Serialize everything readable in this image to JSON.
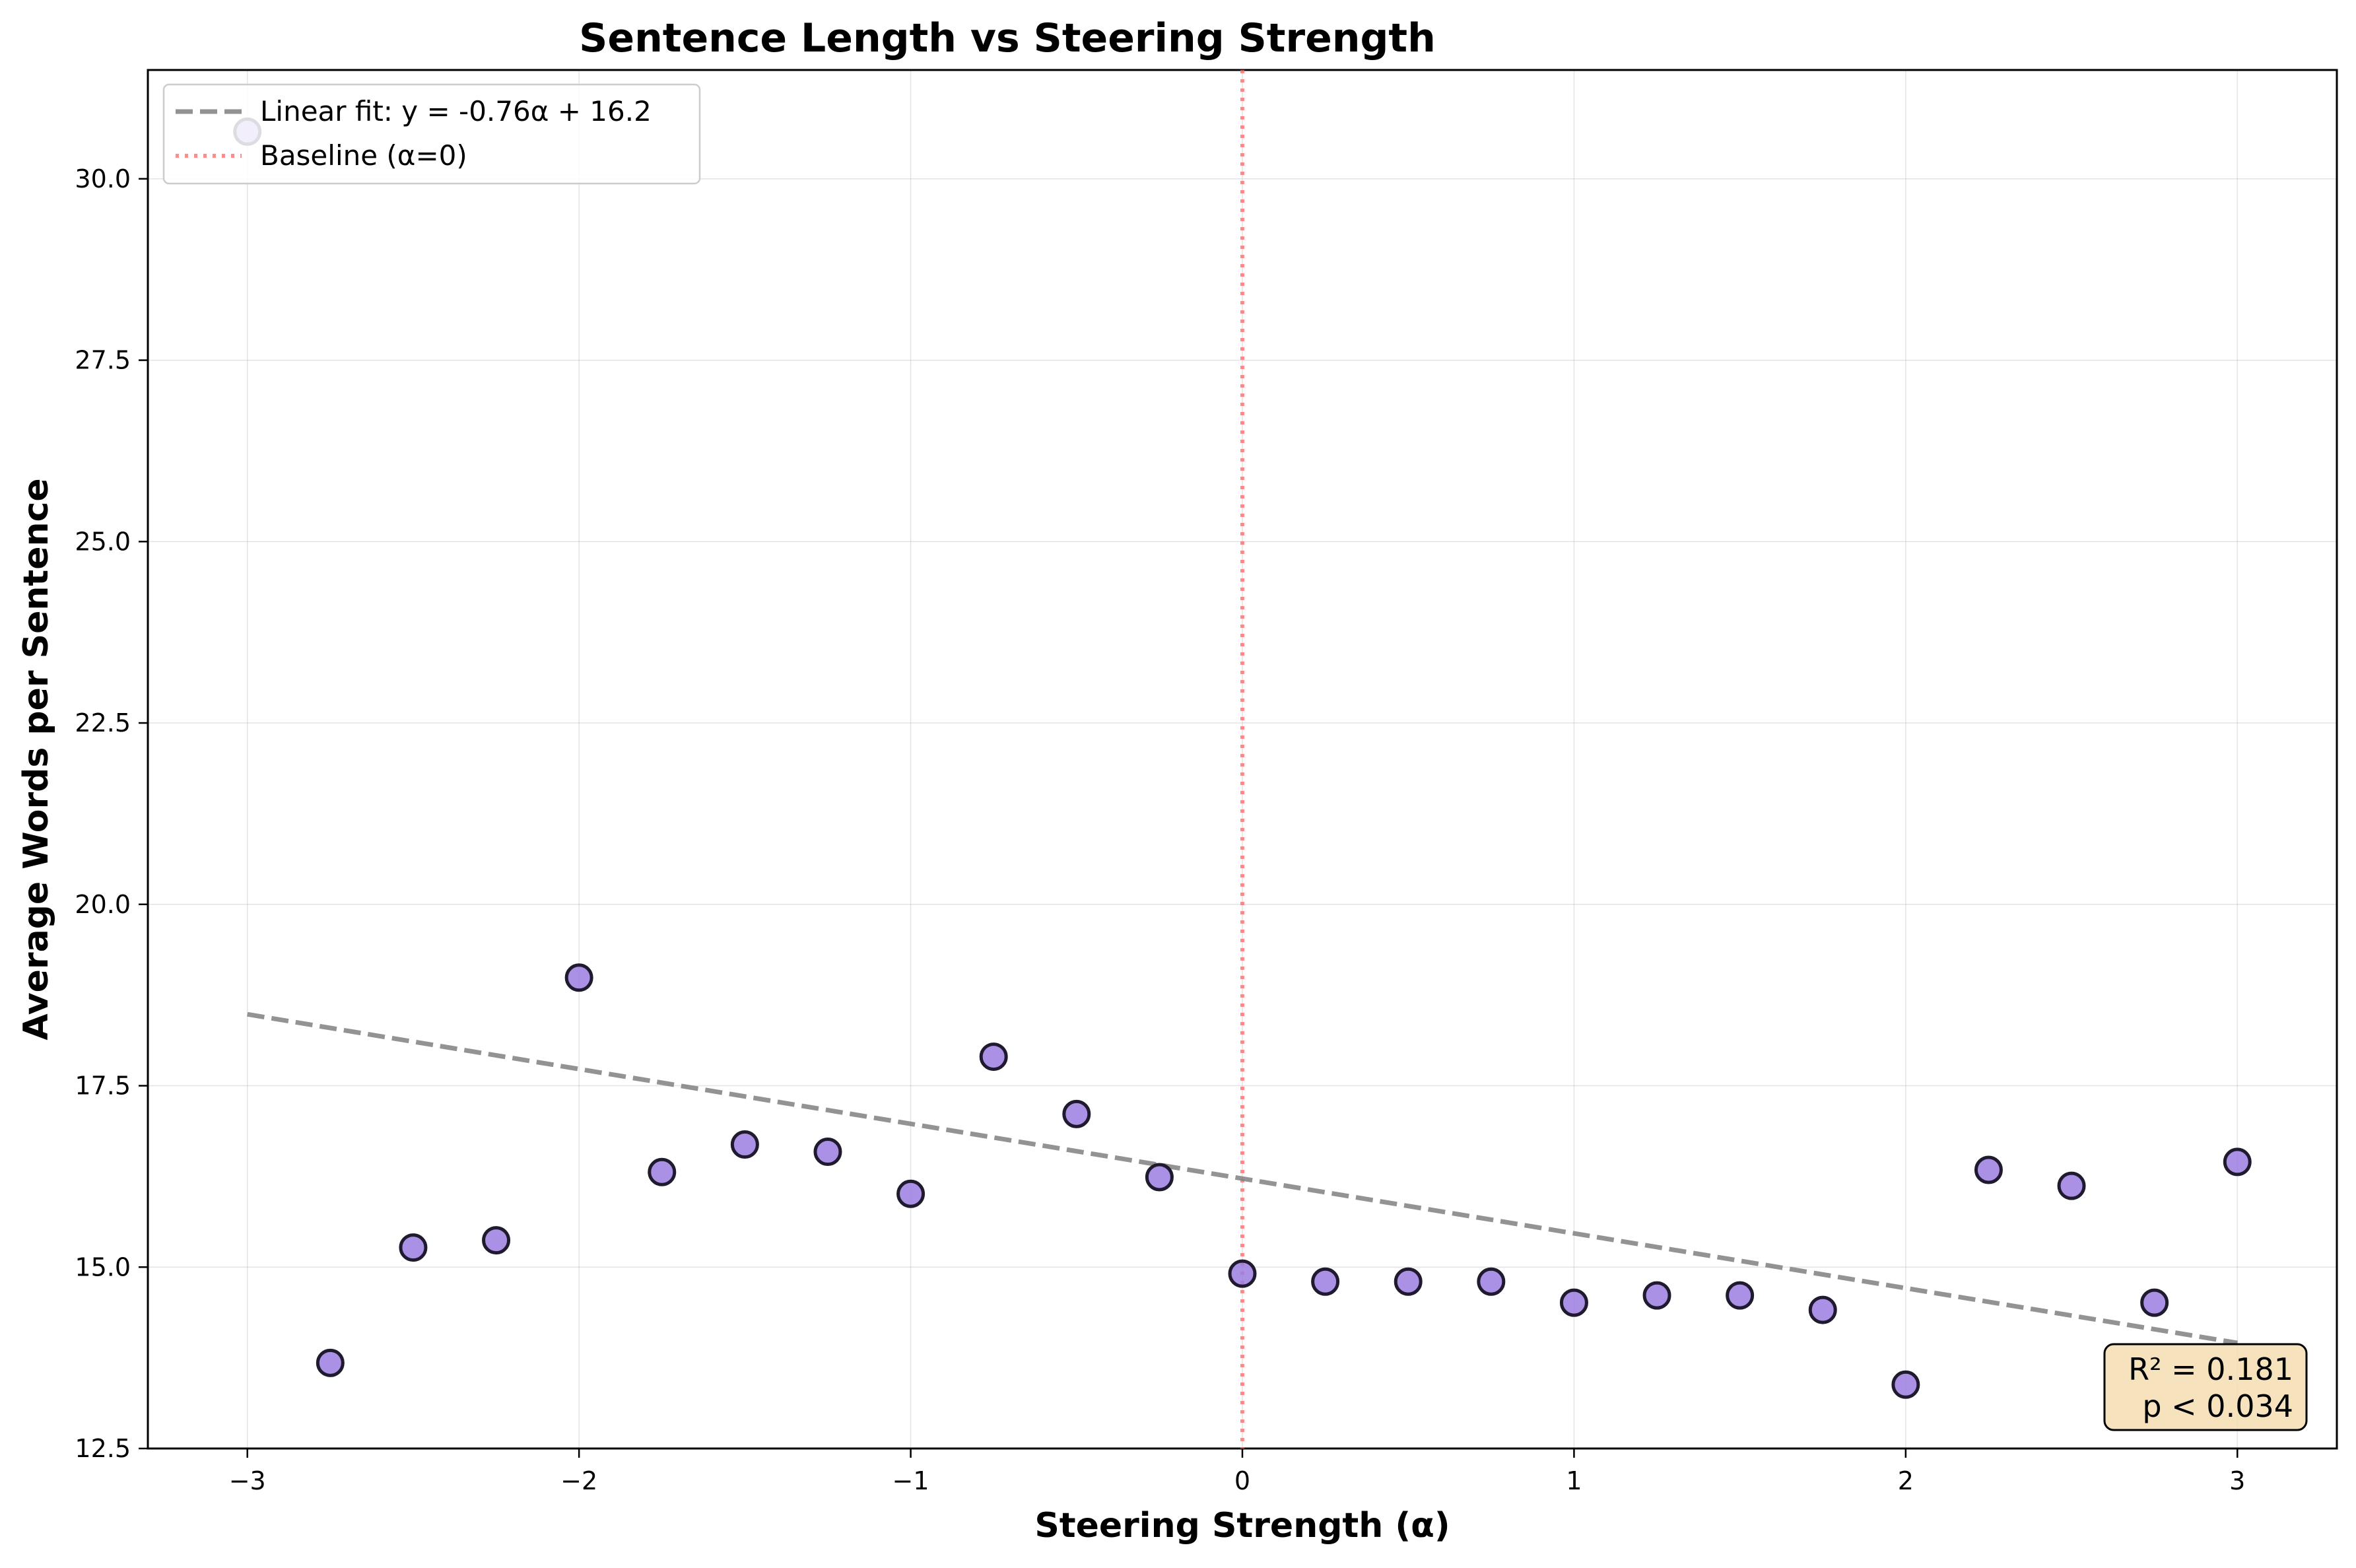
{
  "chart_data": {
    "type": "scatter",
    "title": "Sentence Length vs Steering Strength",
    "xlabel": "Steering Strength (α)",
    "ylabel": "Average Words per Sentence",
    "xlim": [
      -3.3,
      3.3
    ],
    "ylim": [
      12.5,
      31.5
    ],
    "xticks": [
      -3,
      -2,
      -1,
      0,
      1,
      2,
      3
    ],
    "xtick_labels": [
      "−3",
      "−2",
      "−1",
      "0",
      "1",
      "2",
      "3"
    ],
    "yticks": [
      12.5,
      15.0,
      17.5,
      20.0,
      22.5,
      25.0,
      27.5,
      30.0
    ],
    "ytick_labels": [
      "12.5",
      "15.0",
      "17.5",
      "20.0",
      "22.5",
      "25.0",
      "27.5",
      "30.0"
    ],
    "grid": true,
    "legend_position": "top-left",
    "points": {
      "x": [
        -3.0,
        -2.75,
        -2.5,
        -2.25,
        -2.0,
        -1.75,
        -1.5,
        -1.25,
        -1.0,
        -0.75,
        -0.5,
        -0.25,
        0.0,
        0.25,
        0.5,
        0.75,
        1.0,
        1.25,
        1.5,
        1.75,
        2.0,
        2.25,
        2.5,
        2.75,
        3.0
      ],
      "y": [
        30.65,
        13.68,
        15.27,
        15.37,
        18.99,
        16.31,
        16.69,
        16.59,
        16.01,
        17.9,
        17.11,
        16.24,
        14.91,
        14.8,
        14.8,
        14.8,
        14.51,
        14.61,
        14.61,
        14.41,
        13.38,
        16.34,
        16.12,
        14.51,
        16.45
      ],
      "color": "#9b7ee0",
      "edge_color": "#1f1a2e"
    },
    "fit_line": {
      "label": "Linear fit: y = -0.76α + 16.2",
      "slope": -0.755,
      "intercept": 16.22,
      "x_range": [
        -3,
        3
      ],
      "color": "#808080"
    },
    "baseline": {
      "label": "Baseline (α=0)",
      "x": 0,
      "color": "#ff6666"
    },
    "stats": {
      "r2": "R² = 0.181",
      "p": "p < 0.034",
      "box_color": "#f5deb3"
    }
  }
}
